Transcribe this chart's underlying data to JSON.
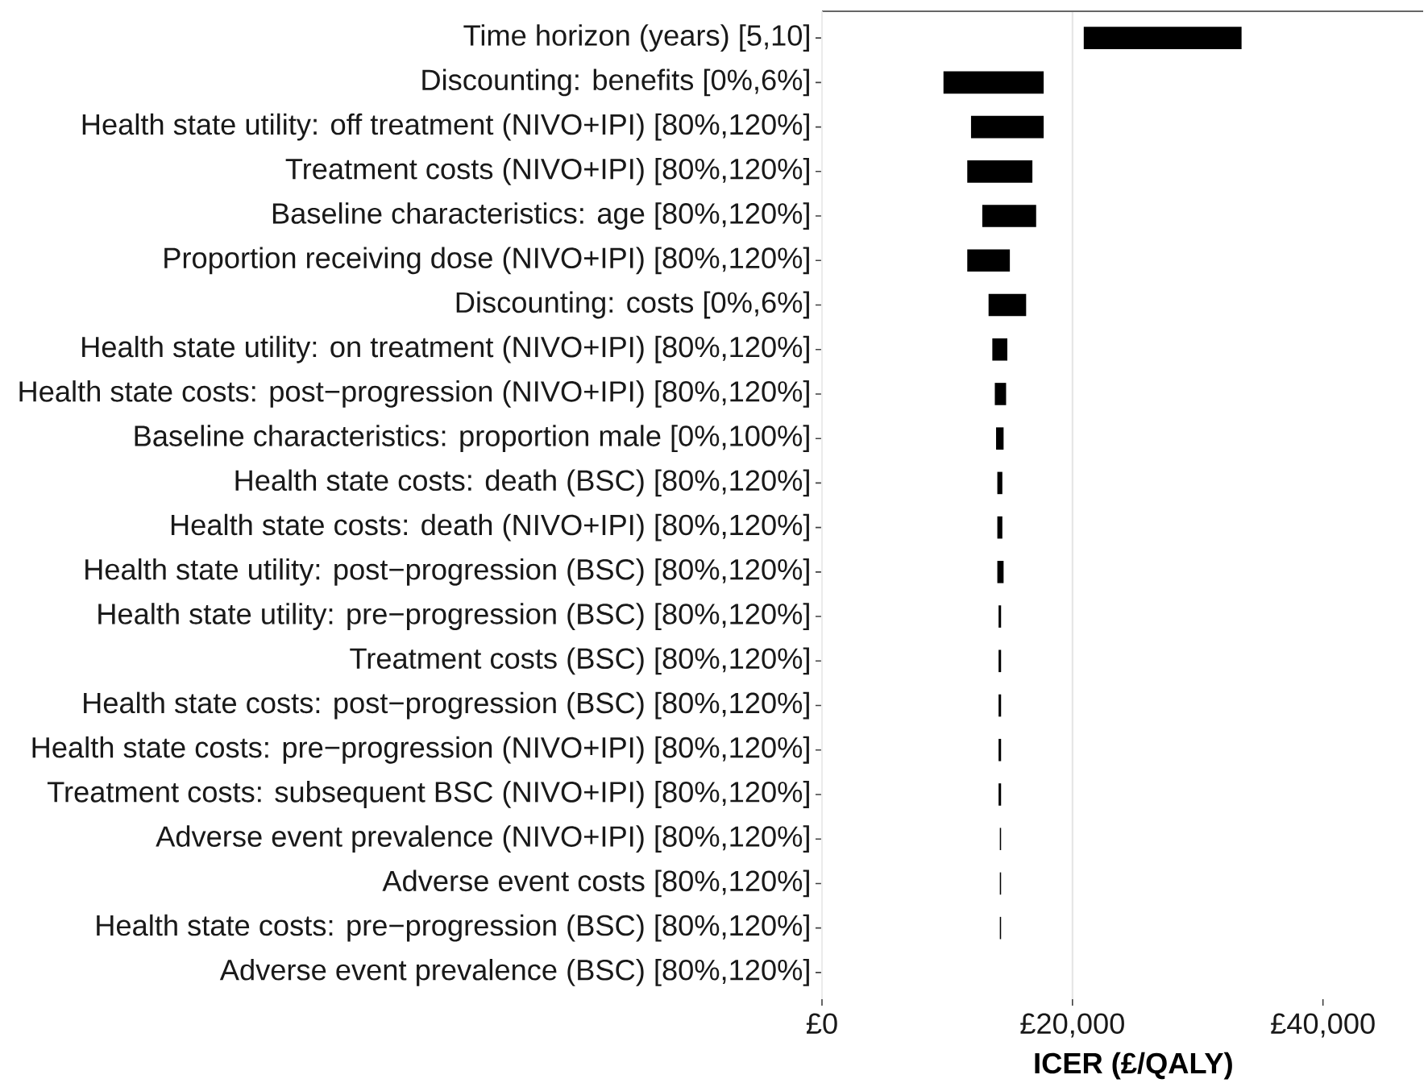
{
  "chart_data": {
    "type": "bar",
    "orientation": "horizontal",
    "xlabel": "ICER (£/QALY)",
    "categories": [
      "Time horizon (years) [5,10]",
      "Discounting: benefits [0%,6%]",
      "Health state utility: off treatment (NIVO+IPI) [80%,120%]",
      "Treatment costs (NIVO+IPI) [80%,120%]",
      "Baseline characteristics: age [80%,120%]",
      "Proportion receiving dose (NIVO+IPI) [80%,120%]",
      "Discounting: costs [0%,6%]",
      "Health state utility: on treatment (NIVO+IPI) [80%,120%]",
      "Health state costs: post−progression (NIVO+IPI) [80%,120%]",
      "Baseline characteristics: proportion male [0%,100%]",
      "Health state costs: death (BSC) [80%,120%]",
      "Health state costs: death (NIVO+IPI) [80%,120%]",
      "Health state utility: post−progression (BSC) [80%,120%]",
      "Health state utility: pre−progression (BSC) [80%,120%]",
      "Treatment costs (BSC) [80%,120%]",
      "Health state costs: post−progression (BSC) [80%,120%]",
      "Health state costs: pre−progression (NIVO+IPI) [80%,120%]",
      "Treatment costs: subsequent BSC (NIVO+IPI) [80%,120%]",
      "Adverse event prevalence (NIVO+IPI) [80%,120%]",
      "Adverse event costs [80%,120%]",
      "Health state costs: pre−progression (BSC) [80%,120%]",
      "Adverse event prevalence (BSC) [80%,120%]"
    ],
    "base": [
      20900,
      9700,
      11900,
      11600,
      12800,
      11600,
      13300,
      13600,
      13800,
      13900,
      14000,
      14000,
      14000,
      14100,
      14100,
      14100,
      14100,
      14100,
      14200,
      14200,
      14200,
      null
    ],
    "values": [
      12600,
      8000,
      5800,
      5200,
      4300,
      3400,
      3000,
      1200,
      900,
      600,
      400,
      400,
      500,
      200,
      200,
      200,
      200,
      200,
      100,
      100,
      100,
      null
    ],
    "color": "#000000",
    "xlim": [
      0,
      48000
    ],
    "xticks": [
      {
        "value": 0,
        "label": "£0"
      },
      {
        "value": 20000,
        "label": "£20,000"
      },
      {
        "value": 40000,
        "label": "£40,000"
      }
    ],
    "ref_lines": [
      {
        "axis": "x",
        "value": 20000,
        "color": "#e5e5e5"
      }
    ]
  }
}
